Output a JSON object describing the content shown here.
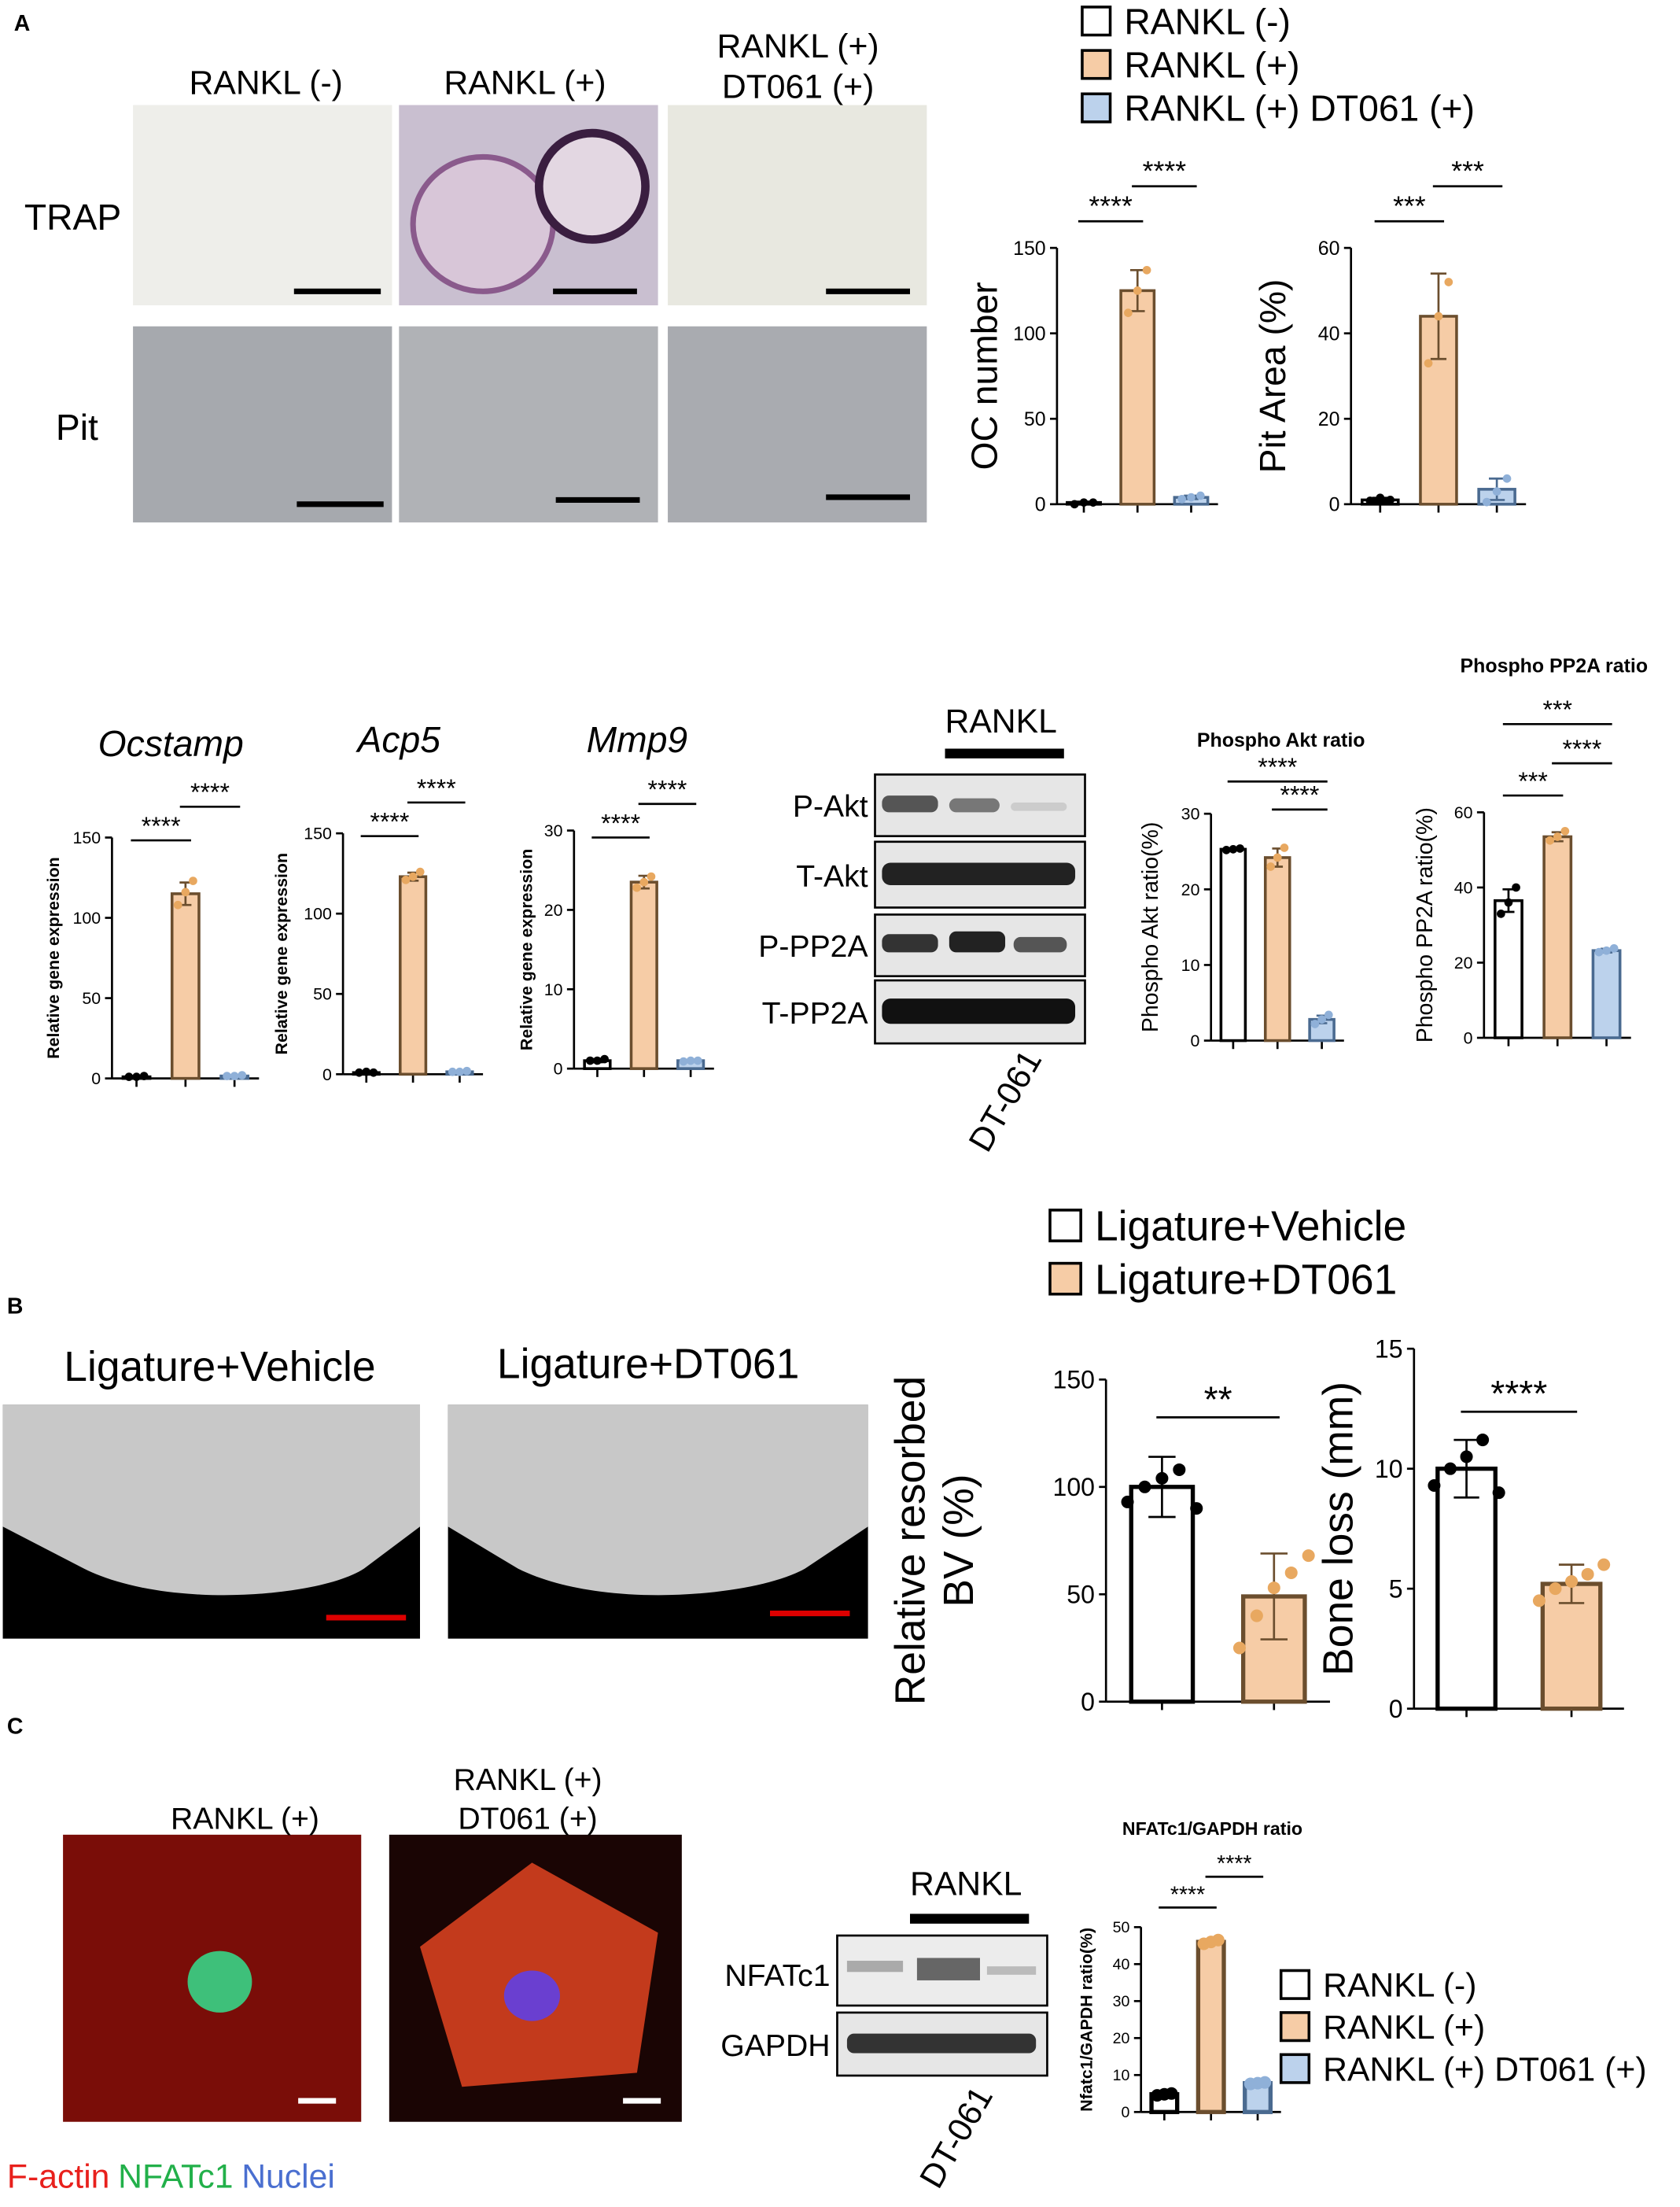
{
  "panel_labels": [
    "A",
    "B",
    "C"
  ],
  "panel_a": {
    "columns": [
      "RANKL (-)",
      "RANKL (+)",
      "RANKL (+)",
      "DT061 (+)"
    ],
    "rows": [
      "TRAP",
      "Pit"
    ]
  },
  "blot_a": {
    "header": "RANKL",
    "rows": [
      "P-Akt",
      "T-Akt",
      "P-PP2A",
      "T-PP2A"
    ],
    "drug": "DT-061"
  },
  "panel_b": {
    "images": [
      "Ligature+Vehicle",
      "Ligature+DT061"
    ]
  },
  "panel_c": {
    "images": [
      "RANKL (+)",
      "RANKL (+)",
      "DT061 (+)"
    ],
    "stains": [
      {
        "label": "F-actin",
        "color": "#e8201c"
      },
      {
        "label": "NFATc1",
        "color": "#22b04a"
      },
      {
        "label": "Nuclei",
        "color": "#4a6fd0"
      }
    ]
  },
  "blot_c": {
    "header": "RANKL",
    "rows": [
      "NFATc1",
      "GAPDH"
    ],
    "drug": "DT-061"
  },
  "legends": [
    {
      "items": [
        {
          "label": "RANKL (-)",
          "color": "#ffffff"
        },
        {
          "label": "RANKL (+)",
          "color": "#f6cca6"
        },
        {
          "label": "RANKL (+) DT061 (+)",
          "color": "#bcd2ec"
        }
      ]
    },
    {
      "items": [
        {
          "label": "Ligature+Vehicle",
          "color": "#ffffff"
        },
        {
          "label": "Ligature+DT061",
          "color": "#f6cca6"
        }
      ]
    },
    {
      "items": [
        {
          "label": "RANKL (-)",
          "color": "#ffffff"
        },
        {
          "label": "RANKL (+)",
          "color": "#f6cca6"
        },
        {
          "label": "RANKL (+) DT061 (+)",
          "color": "#bcd2ec"
        }
      ]
    }
  ],
  "chart_data": [
    {
      "type": "bar",
      "ylabel": "OC number",
      "categories": [
        null,
        null,
        null
      ],
      "values": [
        1,
        125,
        4
      ],
      "errors": [
        0.5,
        12,
        1
      ],
      "points": [
        [
          0,
          1,
          1
        ],
        [
          112,
          125,
          137
        ],
        [
          3,
          4,
          5
        ]
      ],
      "colors": [
        "#ffffff",
        "#f6cca6",
        "#bcd2ec"
      ],
      "ylim": [
        0,
        150
      ],
      "yticks": [
        0,
        50,
        100,
        150
      ],
      "annotations": [
        "****",
        "****"
      ]
    },
    {
      "type": "bar",
      "ylabel": "Pit Area (%)",
      "categories": [
        null,
        null,
        null
      ],
      "values": [
        1,
        44,
        3.5
      ],
      "errors": [
        0.5,
        10,
        2.5
      ],
      "points": [
        [
          0.8,
          1.5,
          1
        ],
        [
          33,
          44,
          52
        ],
        [
          0.5,
          3,
          6
        ]
      ],
      "colors": [
        "#ffffff",
        "#f6cca6",
        "#bcd2ec"
      ],
      "ylim": [
        0,
        60
      ],
      "yticks": [
        0,
        20,
        40,
        60
      ],
      "annotations": [
        "***",
        "***"
      ]
    },
    {
      "type": "bar",
      "title": "Ocstamp",
      "ylabel": "Relative gene expression",
      "categories": [
        null,
        null,
        null
      ],
      "values": [
        1,
        115,
        1.5
      ],
      "errors": [
        0.5,
        7,
        0.5
      ],
      "points": [
        [
          1,
          1,
          1.5
        ],
        [
          108,
          116,
          123
        ],
        [
          1.5,
          1.5,
          2
        ]
      ],
      "colors": [
        "#ffffff",
        "#f6cca6",
        "#bcd2ec"
      ],
      "ylim": [
        0,
        150
      ],
      "yticks": [
        0,
        50,
        100,
        150
      ],
      "annotations": [
        "****",
        "****"
      ]
    },
    {
      "type": "bar",
      "title": "Acp5",
      "ylabel": "Relative gene expression",
      "categories": [
        null,
        null,
        null
      ],
      "values": [
        1,
        123,
        1.5
      ],
      "errors": [
        0.5,
        2.5,
        0.5
      ],
      "points": [
        [
          1,
          1.5,
          1
        ],
        [
          121,
          123,
          126
        ],
        [
          1.5,
          1.5,
          2
        ]
      ],
      "colors": [
        "#ffffff",
        "#f6cca6",
        "#bcd2ec"
      ],
      "ylim": [
        0,
        150
      ],
      "yticks": [
        0,
        50,
        100,
        150
      ],
      "annotations": [
        "****",
        "****"
      ]
    },
    {
      "type": "bar",
      "title": "Mmp9",
      "ylabel": "Relative gene expression",
      "categories": [
        null,
        null,
        null
      ],
      "values": [
        1,
        23.5,
        1
      ],
      "errors": [
        0.2,
        0.8,
        0.1
      ],
      "points": [
        [
          1,
          1,
          1.2
        ],
        [
          22.8,
          23.5,
          24.2
        ],
        [
          0.9,
          1,
          1
        ]
      ],
      "colors": [
        "#ffffff",
        "#f6cca6",
        "#bcd2ec"
      ],
      "ylim": [
        0,
        30
      ],
      "yticks": [
        0,
        10,
        20,
        30
      ],
      "annotations": [
        "****",
        "****"
      ]
    },
    {
      "type": "bar",
      "title": "Phospho Akt ratio",
      "ylabel": "Phospho Akt ratio(%)",
      "categories": [
        null,
        null,
        null
      ],
      "values": [
        25.3,
        24.2,
        2.8
      ],
      "errors": [
        0.1,
        1.2,
        0.5
      ],
      "points": [
        [
          25.2,
          25.3,
          25.4
        ],
        [
          23,
          24.2,
          25.5
        ],
        [
          2.2,
          2.8,
          3.4
        ]
      ],
      "colors": [
        "#ffffff",
        "#f6cca6",
        "#bcd2ec"
      ],
      "ylim": [
        0,
        30
      ],
      "yticks": [
        0,
        10,
        20,
        30
      ],
      "annotations": [
        "****",
        "****"
      ]
    },
    {
      "type": "bar",
      "title": "Phospho PP2A ratio",
      "ylabel": "Phospho PP2A ratio(%)",
      "categories": [
        null,
        null,
        null
      ],
      "values": [
        36.5,
        53.5,
        23.2
      ],
      "errors": [
        3,
        1.2,
        0.5
      ],
      "points": [
        [
          33,
          36,
          40
        ],
        [
          52.5,
          53.5,
          55
        ],
        [
          22.8,
          23.2,
          23.8
        ]
      ],
      "colors": [
        "#ffffff",
        "#f6cca6",
        "#bcd2ec"
      ],
      "ylim": [
        0,
        60
      ],
      "yticks": [
        0,
        20,
        40,
        60
      ],
      "annotations": [
        "***",
        "****",
        "***"
      ]
    },
    {
      "type": "bar",
      "ylabel": [
        "Relative resorbed",
        "BV (%)"
      ],
      "categories": [
        null,
        null
      ],
      "values": [
        100,
        49
      ],
      "errors": [
        14,
        20
      ],
      "points": [
        [
          93,
          100,
          104,
          108,
          90
        ],
        [
          25,
          40,
          53,
          60,
          68
        ]
      ],
      "colors": [
        "#ffffff",
        "#f6cca6"
      ],
      "ylim": [
        0,
        150
      ],
      "yticks": [
        0,
        50,
        100,
        150
      ],
      "annotations": [
        "**"
      ]
    },
    {
      "type": "bar",
      "ylabel": "Bone loss (mm)",
      "categories": [
        null,
        null
      ],
      "values": [
        10,
        5.2
      ],
      "errors": [
        1.2,
        0.8
      ],
      "points": [
        [
          9.3,
          10,
          10.5,
          11.2,
          9
        ],
        [
          4.5,
          5,
          5.3,
          5.6,
          6
        ]
      ],
      "colors": [
        "#ffffff",
        "#f6cca6"
      ],
      "ylim": [
        0,
        15
      ],
      "yticks": [
        0,
        5,
        10,
        15
      ],
      "annotations": [
        "****"
      ]
    },
    {
      "type": "bar",
      "title": "NFATc1/GAPDH ratio",
      "ylabel": "Nfatc1/GAPDH ratio(%)",
      "categories": [
        null,
        null,
        null
      ],
      "values": [
        4.8,
        46,
        7.8
      ],
      "errors": [
        0.2,
        0.5,
        0.3
      ],
      "points": [
        [
          4.5,
          4.8,
          5
        ],
        [
          45.5,
          46,
          46.5
        ],
        [
          7.6,
          7.8,
          8
        ]
      ],
      "colors": [
        "#ffffff",
        "#f6cca6",
        "#bcd2ec"
      ],
      "ylim": [
        0,
        50
      ],
      "yticks": [
        0,
        10,
        20,
        30,
        40,
        50
      ],
      "annotations": [
        "****",
        "****"
      ]
    }
  ]
}
